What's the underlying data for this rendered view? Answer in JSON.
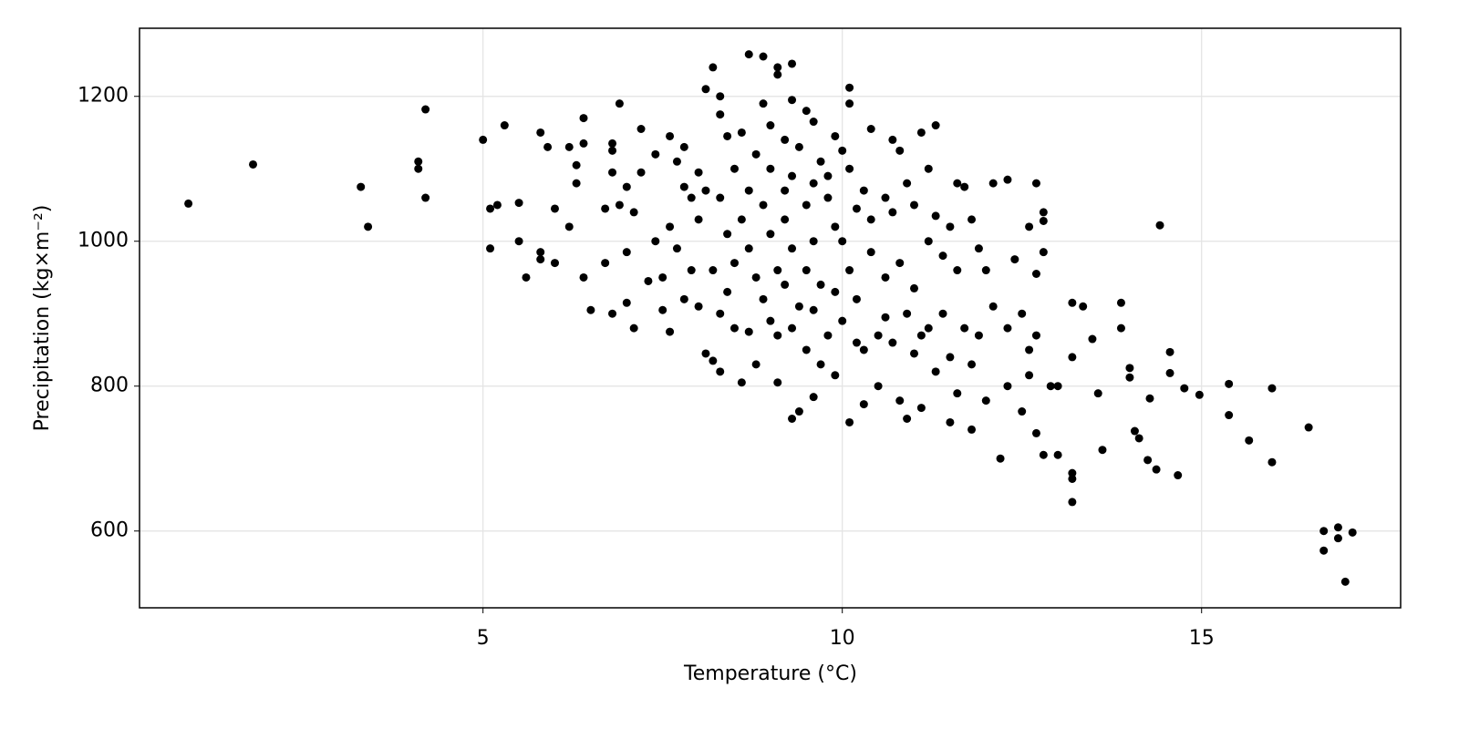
{
  "chart_data": {
    "type": "scatter",
    "x_label": "Temperature (°C)",
    "y_label": "Precipitation (kg×m⁻²)",
    "color": "#000000",
    "grid": true,
    "xlim": [
      0.22,
      17.77
    ],
    "ylim": [
      494,
      1294
    ],
    "xticks": [
      5,
      10,
      15
    ],
    "yticks": [
      600,
      800,
      1000,
      1200
    ],
    "x": [
      0.9,
      1.8,
      3.3,
      3.4,
      4.1,
      4.1,
      4.2,
      4.2,
      5.0,
      5.1,
      5.1,
      5.2,
      5.3,
      5.5,
      5.5,
      5.6,
      5.8,
      5.8,
      5.8,
      5.9,
      6.0,
      6.0,
      6.2,
      6.2,
      6.3,
      6.3,
      6.4,
      6.4,
      6.4,
      6.5,
      6.7,
      6.7,
      6.8,
      6.8,
      6.8,
      6.8,
      6.9,
      6.9,
      7.0,
      7.0,
      7.0,
      7.1,
      7.1,
      7.2,
      7.2,
      7.3,
      7.4,
      7.4,
      7.5,
      7.5,
      7.6,
      7.6,
      7.6,
      7.7,
      7.7,
      7.8,
      7.8,
      7.8,
      7.9,
      7.9,
      8.0,
      8.0,
      8.0,
      8.1,
      8.1,
      8.1,
      8.2,
      8.2,
      8.2,
      8.3,
      8.3,
      8.3,
      8.3,
      8.3,
      8.4,
      8.4,
      8.4,
      8.5,
      8.5,
      8.5,
      8.6,
      8.6,
      8.6,
      8.7,
      8.7,
      8.7,
      8.7,
      8.8,
      8.8,
      8.8,
      8.9,
      8.9,
      8.9,
      8.9,
      9.0,
      9.0,
      9.0,
      9.0,
      9.1,
      9.1,
      9.1,
      9.1,
      9.1,
      9.2,
      9.2,
      9.2,
      9.2,
      9.3,
      9.3,
      9.3,
      9.3,
      9.3,
      9.3,
      9.4,
      9.4,
      9.4,
      9.5,
      9.5,
      9.5,
      9.5,
      9.6,
      9.6,
      9.6,
      9.6,
      9.6,
      9.7,
      9.7,
      9.7,
      9.8,
      9.8,
      9.8,
      9.9,
      9.9,
      9.9,
      9.9,
      10.0,
      10.0,
      10.0,
      10.1,
      10.1,
      10.1,
      10.1,
      10.1,
      10.2,
      10.2,
      10.2,
      10.3,
      10.3,
      10.3,
      10.4,
      10.4,
      10.4,
      10.5,
      10.5,
      10.6,
      10.6,
      10.6,
      10.7,
      10.7,
      10.7,
      10.8,
      10.8,
      10.8,
      10.9,
      10.9,
      10.9,
      11.0,
      11.0,
      11.0,
      11.1,
      11.1,
      11.1,
      11.2,
      11.2,
      11.2,
      11.3,
      11.3,
      11.3,
      11.4,
      11.4,
      11.5,
      11.5,
      11.5,
      11.6,
      11.6,
      11.6,
      11.7,
      11.7,
      11.8,
      11.8,
      11.8,
      11.9,
      11.9,
      12.0,
      12.0,
      12.1,
      12.1,
      12.2,
      12.3,
      12.3,
      12.3,
      12.4,
      12.5,
      12.5,
      12.6,
      12.6,
      12.7,
      12.7,
      12.8,
      12.8,
      12.9,
      12.7,
      12.7,
      12.8,
      12.6,
      12.8,
      13.0,
      13.0,
      13.2,
      13.2,
      13.2,
      13.2,
      13.2,
      13.35,
      13.48,
      13.56,
      13.62,
      13.88,
      13.88,
      14.0,
      14.0,
      14.07,
      14.13,
      14.25,
      14.28,
      14.37,
      14.42,
      14.56,
      14.56,
      14.67,
      14.76,
      14.97,
      15.38,
      15.38,
      15.66,
      15.98,
      15.98,
      16.49,
      16.7,
      16.7,
      16.9,
      16.9,
      17.1,
      17.0
    ],
    "values": [
      1052,
      1106,
      1075,
      1020,
      1110,
      1100,
      1182,
      1060,
      1140,
      1045,
      990,
      1050,
      1160,
      1053,
      1000,
      950,
      1150,
      985,
      975,
      1130,
      1045,
      970,
      1130,
      1020,
      1105,
      1080,
      1170,
      1135,
      950,
      905,
      1045,
      970,
      1135,
      1125,
      1095,
      900,
      1190,
      1050,
      1075,
      985,
      915,
      1040,
      880,
      1155,
      1095,
      945,
      1120,
      1000,
      950,
      905,
      1145,
      1020,
      875,
      1110,
      990,
      1130,
      1075,
      920,
      1060,
      960,
      1095,
      1030,
      910,
      1210,
      1070,
      845,
      1240,
      960,
      835,
      1175,
      1200,
      1060,
      900,
      820,
      1145,
      1010,
      930,
      1100,
      970,
      880,
      1150,
      1030,
      805,
      1258,
      1070,
      990,
      875,
      1120,
      950,
      830,
      1255,
      1190,
      1050,
      920,
      1160,
      1100,
      1010,
      890,
      1240,
      1230,
      960,
      870,
      805,
      1140,
      1030,
      940,
      1070,
      1245,
      1195,
      1090,
      990,
      880,
      755,
      1130,
      910,
      765,
      1180,
      1050,
      960,
      850,
      1165,
      1080,
      1000,
      905,
      785,
      1110,
      940,
      830,
      1090,
      1060,
      870,
      1145,
      1020,
      930,
      815,
      1125,
      1000,
      890,
      1212,
      1190,
      1100,
      960,
      750,
      1045,
      920,
      860,
      1070,
      850,
      775,
      1155,
      1030,
      985,
      870,
      800,
      1060,
      950,
      895,
      1140,
      1040,
      860,
      1125,
      970,
      780,
      1080,
      900,
      755,
      1050,
      935,
      845,
      1150,
      870,
      770,
      1100,
      1000,
      880,
      1160,
      1035,
      820,
      980,
      900,
      1020,
      840,
      750,
      1080,
      960,
      790,
      1075,
      880,
      1030,
      830,
      740,
      990,
      870,
      960,
      780,
      1080,
      910,
      700,
      1085,
      880,
      800,
      975,
      900,
      765,
      1020,
      850,
      870,
      735,
      1040,
      985,
      800,
      1080,
      955,
      1028,
      815,
      705,
      705,
      800,
      915,
      840,
      680,
      672,
      640,
      910,
      865,
      790,
      712,
      915,
      880,
      825,
      812,
      738,
      728,
      698,
      783,
      685,
      1022,
      847,
      818,
      677,
      797,
      788,
      803,
      760,
      725,
      797,
      695,
      743,
      600,
      573,
      605,
      590,
      598,
      530
    ]
  }
}
